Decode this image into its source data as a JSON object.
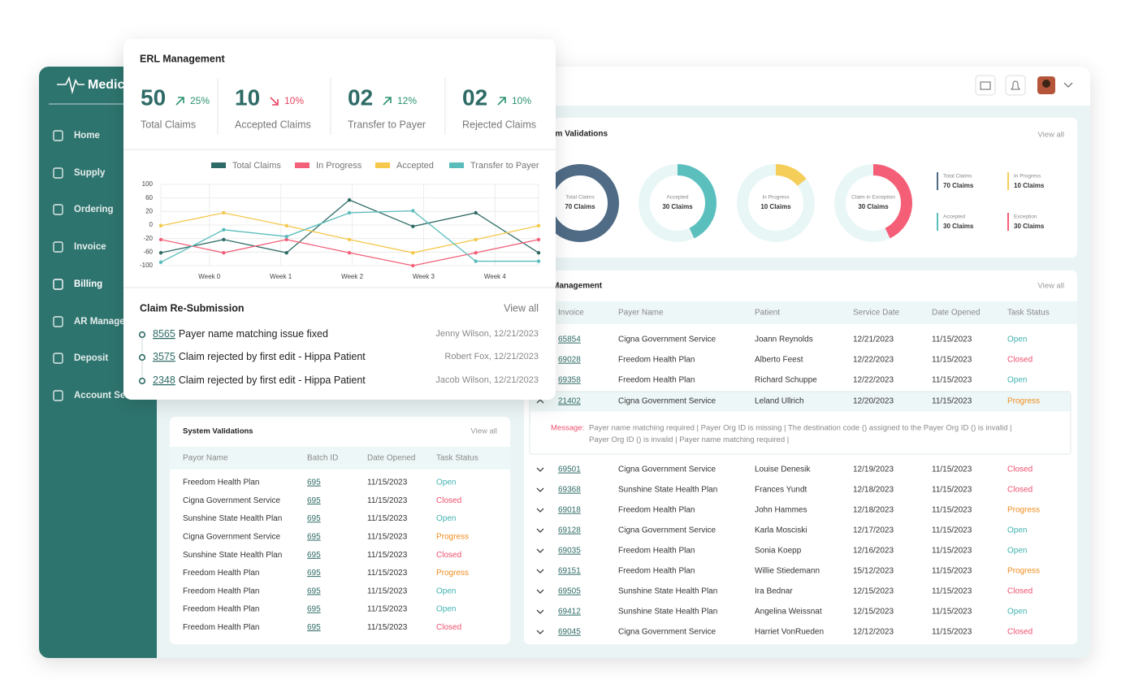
{
  "sidebar": {
    "logo": "Medic",
    "nav": [
      "Home",
      "Supply",
      "Ordering",
      "Invoice",
      "Billing",
      "AR Manage",
      "Deposit",
      "Account Se"
    ],
    "active": 4
  },
  "erl": {
    "title": "ERL Management",
    "stats": [
      {
        "value": "50",
        "change": "25%",
        "trend": "up",
        "label": "Total Claims"
      },
      {
        "value": "10",
        "change": "10%",
        "trend": "down",
        "label": "Accepted Claims"
      },
      {
        "value": "02",
        "change": "12%",
        "trend": "up",
        "label": "Transfer to Payer"
      },
      {
        "value": "02",
        "change": "10%",
        "trend": "up",
        "label": "Rejected Claims"
      }
    ]
  },
  "chart_data": {
    "type": "line",
    "x": [
      -0.68,
      0.2,
      1.08,
      1.96,
      2.85,
      3.73,
      4.61
    ],
    "xlim": [
      -0.68,
      4.61
    ],
    "xticks": [
      {
        "value": 0,
        "label": "Week 0"
      },
      {
        "value": 1,
        "label": "Week 1"
      },
      {
        "value": 2,
        "label": "Week 2"
      },
      {
        "value": 3,
        "label": "Week 3"
      },
      {
        "value": 4,
        "label": "Week 4"
      }
    ],
    "ylim": [
      -100,
      100
    ],
    "yticks": [
      100,
      60,
      20,
      0,
      -20,
      -60,
      -100
    ],
    "grid": true,
    "series": [
      {
        "name": "Total Claims",
        "color": "#2e6b66",
        "values": [
          -62,
          -23,
          -62,
          54,
          -2,
          18,
          -62
        ]
      },
      {
        "name": "In Progress",
        "color": "#f2607a",
        "values": [
          -23,
          -62,
          -23,
          -62,
          -100,
          -62,
          -23
        ]
      },
      {
        "name": "Accepted",
        "color": "#f5c84c",
        "values": [
          -1,
          18,
          -1,
          -23,
          -62,
          -23,
          -1
        ]
      },
      {
        "name": "Transfer to Payer",
        "color": "#5bbcbc",
        "values": [
          -90,
          -7,
          -17,
          18,
          22,
          -87,
          -87
        ]
      }
    ]
  },
  "resubmission": {
    "title": "Claim Re-Submission",
    "view_all": "View all",
    "items": [
      {
        "id": "8565",
        "text": "Payer name matching issue fixed",
        "meta": "Jenny Wilson, 12/21/2023"
      },
      {
        "id": "3575",
        "text": "Claim rejected by first edit - Hippa Patient",
        "meta": "Robert Fox, 12/21/2023"
      },
      {
        "id": "2348",
        "text": "Claim rejected by first edit - Hippa Patient",
        "meta": "Jacob Wilson, 12/21/2023"
      }
    ]
  },
  "validations": {
    "title": "em Validations",
    "view_all": "View all",
    "donuts": [
      {
        "label": "Total Claims",
        "value": 70,
        "value_label": "70 Claims",
        "color": "#4f6b85"
      },
      {
        "label": "Accepted",
        "value": 30,
        "value_label": "30 Claims",
        "color": "#5bbfbe"
      },
      {
        "label": "In Progress",
        "value": 10,
        "value_label": "10 Claims",
        "color": "#f5ce5a"
      },
      {
        "label": "Claim in Exception",
        "value": 30,
        "value_label": "30 Claims",
        "color": "#f45f77"
      }
    ],
    "legend": [
      {
        "label": "Total Claims",
        "text": "70 Claims",
        "color": "#4f6b85"
      },
      {
        "label": "In Progress",
        "text": "10 Claims",
        "color": "#f5ce5a"
      },
      {
        "label": "Accepted",
        "text": "30 Claims",
        "color": "#5bbfbe"
      },
      {
        "label": "Exception",
        "text": "30 Claims",
        "color": "#f45f77"
      }
    ]
  },
  "status_colors": {
    "Open": "#3fb3b0",
    "Closed": "#f0506e",
    "Progress": "#f08c1e"
  },
  "management": {
    "title": "Management",
    "view_all": "View all",
    "columns": [
      "Invoice",
      "Payer Name",
      "Patient",
      "Service Date",
      "Date Opened",
      "Task Status"
    ],
    "expanded_row": 3,
    "message_label": "Message:",
    "message": [
      "Payer name matching required | Payer Org ID is missing | The destination code () assigned to the Payer Org ID () is invalid |",
      "Payer Org ID () is invalid | Payer name matching required |"
    ],
    "rows": [
      [
        "65854",
        "Cigna Government Service",
        "Joann Reynolds",
        "12/21/2023",
        "11/15/2023",
        "Open"
      ],
      [
        "69028",
        "Freedom Health Plan",
        "Alberto Feest",
        "12/22/2023",
        "11/15/2023",
        "Closed"
      ],
      [
        "69358",
        "Freedom Health Plan",
        "Richard Schuppe",
        "12/22/2023",
        "11/15/2023",
        "Open"
      ],
      [
        "21402",
        "Cigna Government Service",
        "Leland Ullrich",
        "12/20/2023",
        "11/15/2023",
        "Progress"
      ],
      [
        "69501",
        "Cigna Government Service",
        "Louise Denesik",
        "12/19/2023",
        "11/15/2023",
        "Closed"
      ],
      [
        "69368",
        "Sunshine State Health Plan",
        "Frances Yundt",
        "12/18/2023",
        "11/15/2023",
        "Closed"
      ],
      [
        "69018",
        "Freedom Health Plan",
        "John Hammes",
        "12/18/2023",
        "11/15/2023",
        "Progress"
      ],
      [
        "69128",
        "Cigna Government Service",
        "Karla Mosciski",
        "12/17/2023",
        "11/15/2023",
        "Open"
      ],
      [
        "69035",
        "Freedom Health Plan",
        "Sonia Koepp",
        "12/16/2023",
        "11/15/2023",
        "Open"
      ],
      [
        "69151",
        "Freedom Health Plan",
        "Willie Stiedemann",
        "15/12/2023",
        "11/15/2023",
        "Progress"
      ],
      [
        "69505",
        "Sunshine State Health Plan",
        "Ira Bednar",
        "12/15/2023",
        "11/15/2023",
        "Closed"
      ],
      [
        "69412",
        "Sunshine State Health Plan",
        "Angelina Weissnat",
        "12/15/2023",
        "11/15/2023",
        "Open"
      ],
      [
        "69045",
        "Cigna Government Service",
        "Harriet VonRueden",
        "12/12/2023",
        "11/15/2023",
        "Closed"
      ]
    ]
  },
  "system_validations": {
    "title": "System Validations",
    "view_all": "View all",
    "columns": [
      "Payor Name",
      "Batch ID",
      "Date Opened",
      "Task Status"
    ],
    "rows": [
      [
        "Freedom Health Plan",
        "695",
        "11/15/2023",
        "Open"
      ],
      [
        "Cigna Government Service",
        "695",
        "11/15/2023",
        "Closed"
      ],
      [
        "Sunshine State Health Plan",
        "695",
        "11/15/2023",
        "Open"
      ],
      [
        "Cigna Government Service",
        "695",
        "11/15/2023",
        "Progress"
      ],
      [
        "Sunshine State Health Plan",
        "695",
        "11/15/2023",
        "Closed"
      ],
      [
        "Freedom Health Plan",
        "695",
        "11/15/2023",
        "Progress"
      ],
      [
        "Freedom Health Plan",
        "695",
        "11/15/2023",
        "Open"
      ],
      [
        "Freedom Health Plan",
        "695",
        "11/15/2023",
        "Open"
      ],
      [
        "Freedom Health Plan",
        "695",
        "11/15/2023",
        "Closed"
      ]
    ]
  }
}
